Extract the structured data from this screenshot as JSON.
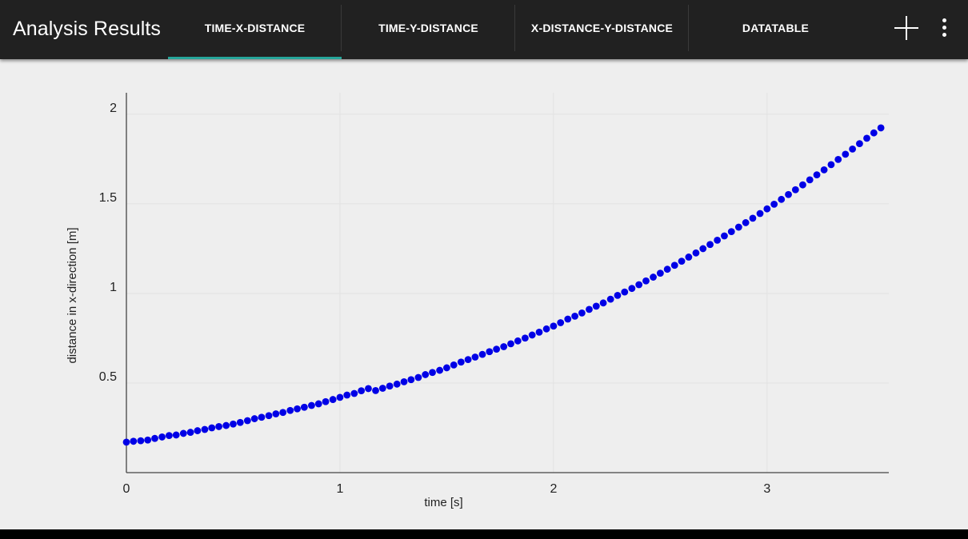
{
  "app_bar": {
    "title": "Analysis Results",
    "tabs": [
      {
        "label": "TIME-X-DISTANCE",
        "selected": true
      },
      {
        "label": "TIME-Y-DISTANCE",
        "selected": false
      },
      {
        "label": "X-DISTANCE-Y-DISTANCE",
        "selected": false
      },
      {
        "label": "DATATABLE",
        "selected": false
      }
    ],
    "actions": [
      {
        "icon": "plus-icon"
      },
      {
        "icon": "more-vert-icon"
      }
    ]
  },
  "colors": {
    "app_bar_bg": "#212121",
    "tab_indicator": "#26a69a",
    "plot_bg": "#eeeeee",
    "point_color": "#0000e6"
  },
  "chart_data": {
    "type": "scatter",
    "xlabel": "time [s]",
    "ylabel": "distance in x-direction [m]",
    "xlim": [
      0,
      3.57
    ],
    "ylim": [
      0,
      2.12
    ],
    "xticks": [
      0,
      1,
      2,
      3
    ],
    "yticks": [
      0.5,
      1,
      1.5,
      2
    ],
    "xtick_labels": [
      "0",
      "1",
      "2",
      "3"
    ],
    "ytick_labels": [
      "0.5",
      "1",
      "1.5",
      "2"
    ],
    "grid": true,
    "series": [
      {
        "color": "#0000e6",
        "x": [
          0,
          0.033,
          0.067,
          0.1,
          0.133,
          0.167,
          0.2,
          0.233,
          0.267,
          0.3,
          0.333,
          0.367,
          0.4,
          0.433,
          0.467,
          0.5,
          0.533,
          0.567,
          0.6,
          0.633,
          0.667,
          0.7,
          0.733,
          0.767,
          0.8,
          0.833,
          0.867,
          0.9,
          0.933,
          0.967,
          1.0,
          1.033,
          1.067,
          1.1,
          1.133,
          1.167,
          1.2,
          1.233,
          1.267,
          1.3,
          1.333,
          1.367,
          1.4,
          1.433,
          1.467,
          1.5,
          1.533,
          1.567,
          1.6,
          1.633,
          1.667,
          1.7,
          1.733,
          1.767,
          1.8,
          1.833,
          1.867,
          1.9,
          1.933,
          1.967,
          2.0,
          2.033,
          2.067,
          2.1,
          2.133,
          2.167,
          2.2,
          2.233,
          2.267,
          2.3,
          2.333,
          2.367,
          2.4,
          2.433,
          2.467,
          2.5,
          2.533,
          2.567,
          2.6,
          2.633,
          2.667,
          2.7,
          2.733,
          2.767,
          2.8,
          2.833,
          2.867,
          2.9,
          2.933,
          2.967,
          3.0,
          3.033,
          3.067,
          3.1,
          3.133,
          3.167,
          3.2,
          3.233,
          3.267,
          3.3,
          3.333,
          3.367,
          3.4,
          3.433,
          3.467,
          3.5,
          3.533
        ],
        "y": [
          0.17,
          0.175,
          0.178,
          0.182,
          0.191,
          0.199,
          0.207,
          0.21,
          0.219,
          0.225,
          0.234,
          0.241,
          0.25,
          0.257,
          0.263,
          0.271,
          0.28,
          0.29,
          0.301,
          0.309,
          0.318,
          0.328,
          0.336,
          0.347,
          0.356,
          0.365,
          0.375,
          0.384,
          0.396,
          0.408,
          0.42,
          0.433,
          0.442,
          0.457,
          0.469,
          0.458,
          0.471,
          0.483,
          0.494,
          0.507,
          0.519,
          0.531,
          0.547,
          0.559,
          0.571,
          0.585,
          0.601,
          0.617,
          0.631,
          0.645,
          0.66,
          0.675,
          0.689,
          0.703,
          0.719,
          0.735,
          0.751,
          0.768,
          0.784,
          0.802,
          0.818,
          0.837,
          0.857,
          0.873,
          0.891,
          0.911,
          0.929,
          0.947,
          0.968,
          0.989,
          1.008,
          1.028,
          1.049,
          1.07,
          1.091,
          1.113,
          1.135,
          1.157,
          1.18,
          1.203,
          1.226,
          1.25,
          1.273,
          1.297,
          1.321,
          1.345,
          1.37,
          1.395,
          1.42,
          1.446,
          1.472,
          1.498,
          1.525,
          1.552,
          1.579,
          1.606,
          1.634,
          1.662,
          1.69,
          1.719,
          1.748,
          1.777,
          1.806,
          1.836,
          1.866,
          1.896,
          1.924
        ]
      }
    ]
  }
}
